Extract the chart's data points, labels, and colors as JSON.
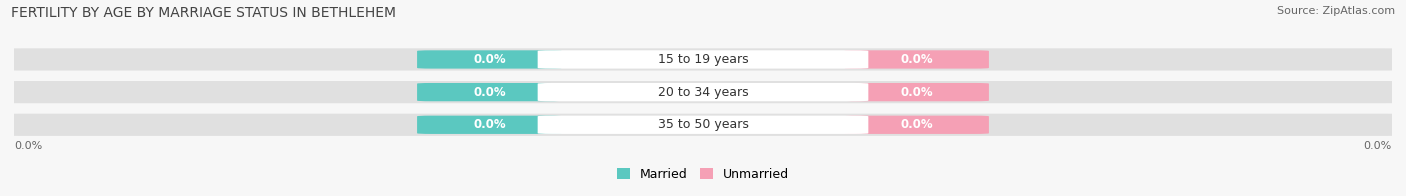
{
  "title": "FERTILITY BY AGE BY MARRIAGE STATUS IN BETHLEHEM",
  "source": "Source: ZipAtlas.com",
  "age_groups": [
    "15 to 19 years",
    "20 to 34 years",
    "35 to 50 years"
  ],
  "married_values": [
    0.0,
    0.0,
    0.0
  ],
  "unmarried_values": [
    0.0,
    0.0,
    0.0
  ],
  "married_color": "#5bc8c0",
  "unmarried_color": "#f5a0b5",
  "bar_bg_color": "#e0e0e0",
  "center_bg_color": "#ffffff",
  "married_label": "Married",
  "unmarried_label": "Unmarried",
  "title_fontsize": 10,
  "source_fontsize": 8,
  "label_fontsize": 8.5,
  "age_fontsize": 9,
  "tick_fontsize": 8,
  "background_color": "#f7f7f7",
  "axis_label_left": "0.0%",
  "axis_label_right": "0.0%",
  "title_color": "#444444",
  "source_color": "#666666",
  "tick_color": "#666666",
  "age_label_color": "#333333"
}
